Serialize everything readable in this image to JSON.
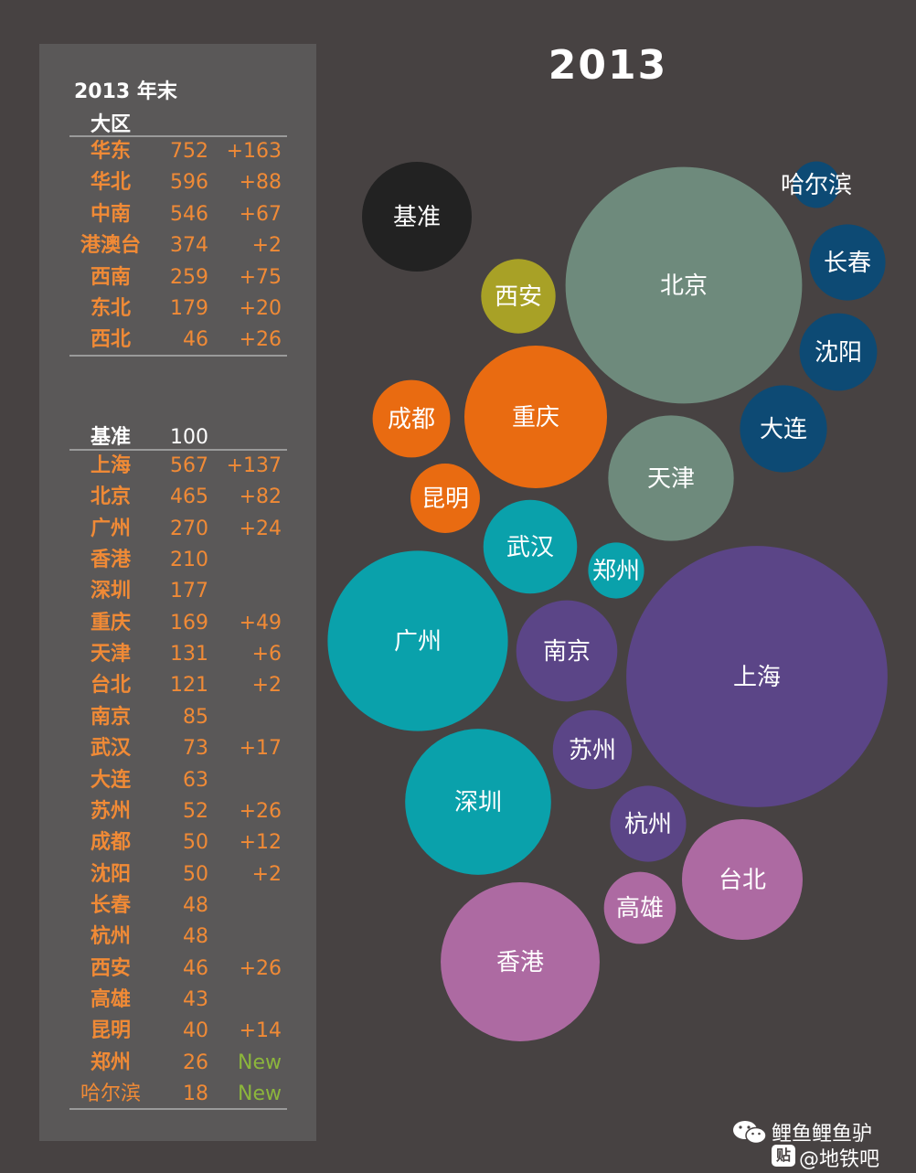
{
  "panel": {
    "title": "2013 年末",
    "regions_title": "大区",
    "regions": [
      {
        "name": "华东",
        "value": "752",
        "change": "+163"
      },
      {
        "name": "华北",
        "value": "596",
        "change": "+88"
      },
      {
        "name": "中南",
        "value": "546",
        "change": "+67"
      },
      {
        "name": "港澳台",
        "value": "374",
        "change": "+2"
      },
      {
        "name": "西南",
        "value": "259",
        "change": "+75"
      },
      {
        "name": "东北",
        "value": "179",
        "change": "+20"
      },
      {
        "name": "西北",
        "value": "46",
        "change": "+26"
      }
    ],
    "baseline": {
      "name": "基准",
      "value": "100"
    },
    "cities": [
      {
        "name": "上海",
        "value": "567",
        "change": "+137"
      },
      {
        "name": "北京",
        "value": "465",
        "change": "+82"
      },
      {
        "name": "广州",
        "value": "270",
        "change": "+24"
      },
      {
        "name": "香港",
        "value": "210",
        "change": ""
      },
      {
        "name": "深圳",
        "value": "177",
        "change": ""
      },
      {
        "name": "重庆",
        "value": "169",
        "change": "+49"
      },
      {
        "name": "天津",
        "value": "131",
        "change": "+6"
      },
      {
        "name": "台北",
        "value": "121",
        "change": "+2"
      },
      {
        "name": "南京",
        "value": "85",
        "change": ""
      },
      {
        "name": "武汉",
        "value": "73",
        "change": "+17"
      },
      {
        "name": "大连",
        "value": "63",
        "change": ""
      },
      {
        "name": "苏州",
        "value": "52",
        "change": "+26"
      },
      {
        "name": "成都",
        "value": "50",
        "change": "+12"
      },
      {
        "name": "沈阳",
        "value": "50",
        "change": "+2"
      },
      {
        "name": "长春",
        "value": "48",
        "change": ""
      },
      {
        "name": "杭州",
        "value": "48",
        "change": ""
      },
      {
        "name": "西安",
        "value": "46",
        "change": "+26"
      },
      {
        "name": "高雄",
        "value": "43",
        "change": ""
      },
      {
        "name": "昆明",
        "value": "40",
        "change": "+14"
      },
      {
        "name": "郑州",
        "value": "26",
        "change": "New"
      },
      {
        "name": "哈尔滨",
        "value": "18",
        "change": "New"
      }
    ]
  },
  "chart_data": {
    "type": "bubble",
    "title": "2013",
    "baseline": {
      "label": "基准",
      "value": 100,
      "color": "#222222"
    },
    "groups": [
      {
        "group": "华北",
        "color": "#6e8a7c",
        "cities": [
          "北京",
          "天津"
        ]
      },
      {
        "group": "东北",
        "color": "#0d4a74",
        "cities": [
          "哈尔滨",
          "长春",
          "沈阳",
          "大连"
        ]
      },
      {
        "group": "西北",
        "color": "#a8a126",
        "cities": [
          "西安"
        ]
      },
      {
        "group": "西南",
        "color": "#e96b11",
        "cities": [
          "重庆",
          "成都",
          "昆明"
        ]
      },
      {
        "group": "中南",
        "color": "#0aa1ab",
        "cities": [
          "广州",
          "深圳",
          "武汉",
          "郑州"
        ]
      },
      {
        "group": "华东",
        "color": "#5b4587",
        "cities": [
          "上海",
          "南京",
          "苏州",
          "杭州"
        ]
      },
      {
        "group": "港澳台",
        "color": "#ad6aa2",
        "cities": [
          "香港",
          "台北",
          "高雄"
        ]
      }
    ],
    "values": [
      {
        "city": "上海",
        "value": 567
      },
      {
        "city": "北京",
        "value": 465
      },
      {
        "city": "广州",
        "value": 270
      },
      {
        "city": "香港",
        "value": 210
      },
      {
        "city": "深圳",
        "value": 177
      },
      {
        "city": "重庆",
        "value": 169
      },
      {
        "city": "天津",
        "value": 131
      },
      {
        "city": "台北",
        "value": 121
      },
      {
        "city": "南京",
        "value": 85
      },
      {
        "city": "武汉",
        "value": 73
      },
      {
        "city": "大连",
        "value": 63
      },
      {
        "city": "苏州",
        "value": 52
      },
      {
        "city": "成都",
        "value": 50
      },
      {
        "city": "沈阳",
        "value": 50
      },
      {
        "city": "长春",
        "value": 48
      },
      {
        "city": "杭州",
        "value": 48
      },
      {
        "city": "西安",
        "value": 46
      },
      {
        "city": "高雄",
        "value": 43
      },
      {
        "city": "昆明",
        "value": 40
      },
      {
        "city": "郑州",
        "value": 26
      },
      {
        "city": "哈尔滨",
        "value": 18
      }
    ]
  },
  "footer": {
    "line1": "鲤鱼鲤鱼驴",
    "badge": "贴",
    "line2": "@地铁吧"
  }
}
